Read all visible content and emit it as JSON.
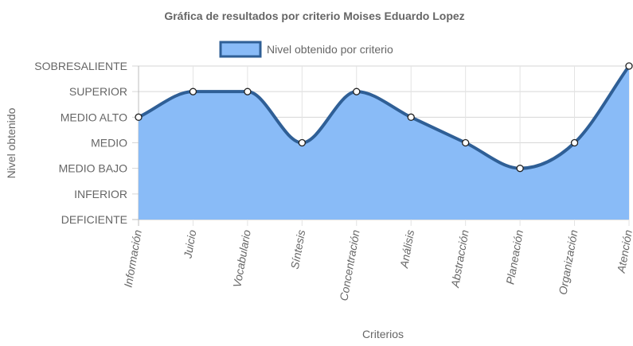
{
  "chart_data": {
    "type": "area",
    "title": "Gráfica de resultados por criterio Moises Eduardo Lopez",
    "xlabel": "Criterios",
    "ylabel": "Nivel obtenido",
    "y_levels": [
      "DEFICIENTE",
      "INFERIOR",
      "MEDIO BAJO",
      "MEDIO",
      "MEDIO ALTO",
      "SUPERIOR",
      "SOBRESALIENTE"
    ],
    "ylim": [
      0,
      6
    ],
    "categories": [
      "Información",
      "Juicio",
      "Vocabulario",
      "Síntesis",
      "Concentración",
      "Análisis",
      "Abstracción",
      "Planeación",
      "Organización",
      "Atención"
    ],
    "series": [
      {
        "name": "Nivel obtenido por criterio",
        "values": [
          4,
          5,
          5,
          3,
          5,
          4,
          3,
          2,
          3,
          6
        ]
      }
    ],
    "colors": {
      "fill": "#89bbf7",
      "line": "#2f5f96",
      "point_fill": "#ffffff",
      "grid": "#d9d9d9"
    },
    "grid": true,
    "legend_position": "top"
  }
}
